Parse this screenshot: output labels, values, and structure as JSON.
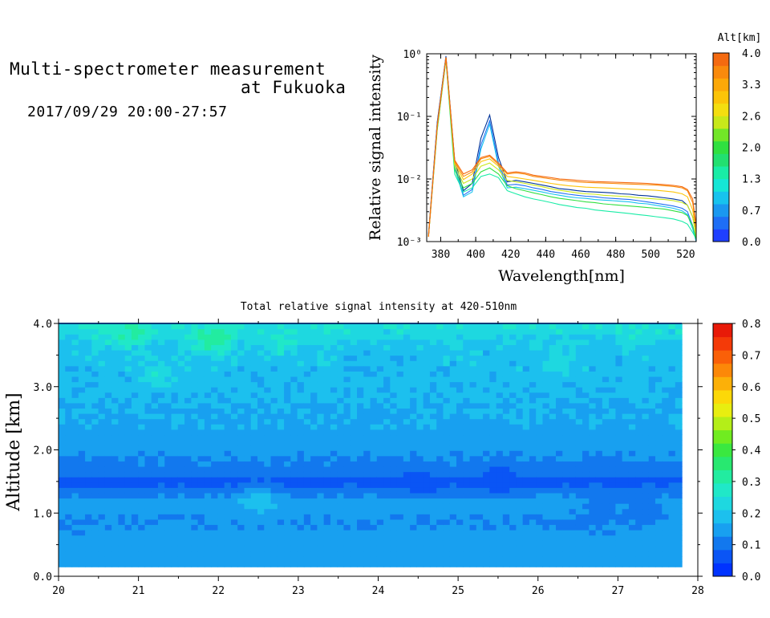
{
  "header": {
    "title_line1": "Multi-spectrometer measurement",
    "title_line2": "at Fukuoka",
    "subtitle": "2017/09/29 20:00-27:57"
  },
  "chart_data": [
    {
      "type": "line",
      "name": "spectra",
      "xlabel": "Wavelength[nm]",
      "ylabel": "Relative signal intensity",
      "xlim": [
        372,
        526
      ],
      "ylim": [
        0.001,
        1
      ],
      "yscale": "log",
      "xticks": [
        "380",
        "400",
        "420",
        "440",
        "460",
        "480",
        "500",
        "520"
      ],
      "yticks": [
        "10⁻³",
        "10⁻²",
        "10⁻¹",
        "10⁰"
      ],
      "x": [
        373,
        378,
        383,
        388,
        393,
        398,
        403,
        408,
        413,
        418,
        423,
        428,
        433,
        438,
        443,
        448,
        453,
        458,
        463,
        468,
        473,
        478,
        483,
        488,
        493,
        498,
        503,
        508,
        513,
        518,
        521,
        524,
        526
      ],
      "colorbar": {
        "title": "Alt[km]",
        "ticks": [
          "0.0",
          "0.7",
          "1.3",
          "2.0",
          "2.6",
          "3.3",
          "4.0"
        ],
        "colors": [
          "#1f3fff",
          "#1e6ef5",
          "#1a98f0",
          "#17c3ee",
          "#15e6d6",
          "#19eca6",
          "#22e070",
          "#30e040",
          "#72e628",
          "#c8e81a",
          "#f4de10",
          "#fcc408",
          "#fca808",
          "#f98a0c",
          "#f46a10"
        ]
      },
      "series": [
        {
          "color": "#003399",
          "values": [
            0.0013,
            0.08,
            0.92,
            0.02,
            0.0065,
            0.0085,
            0.045,
            0.105,
            0.022,
            0.009,
            0.0095,
            0.009,
            0.0085,
            0.008,
            0.0075,
            0.007,
            0.0068,
            0.0065,
            0.0063,
            0.0062,
            0.0061,
            0.006,
            0.0058,
            0.0057,
            0.0055,
            0.0054,
            0.0052,
            0.005,
            0.0048,
            0.0045,
            0.0038,
            0.0025,
            0.0013
          ]
        },
        {
          "color": "#1e6ef5",
          "values": [
            0.0012,
            0.075,
            0.9,
            0.017,
            0.0055,
            0.0068,
            0.035,
            0.085,
            0.018,
            0.008,
            0.0082,
            0.0078,
            0.0072,
            0.0068,
            0.0063,
            0.006,
            0.0057,
            0.0055,
            0.0053,
            0.0052,
            0.005,
            0.0049,
            0.0048,
            0.0047,
            0.0045,
            0.0043,
            0.0041,
            0.0039,
            0.0037,
            0.0034,
            0.003,
            0.0018,
            0.001
          ]
        },
        {
          "color": "#17c3ee",
          "values": [
            0.0012,
            0.07,
            0.85,
            0.015,
            0.0052,
            0.0062,
            0.03,
            0.075,
            0.016,
            0.0072,
            0.0074,
            0.007,
            0.0066,
            0.0062,
            0.0058,
            0.0055,
            0.0052,
            0.005,
            0.0049,
            0.0047,
            0.0046,
            0.0045,
            0.0044,
            0.0043,
            0.0041,
            0.004,
            0.0038,
            0.0036,
            0.0034,
            0.0031,
            0.0027,
            0.0016,
            0.001
          ]
        },
        {
          "color": "#19eca6",
          "values": [
            0.0012,
            0.06,
            0.8,
            0.012,
            0.0062,
            0.0072,
            0.011,
            0.012,
            0.0105,
            0.0065,
            0.0058,
            0.0052,
            0.0048,
            0.0045,
            0.0042,
            0.0039,
            0.0037,
            0.0035,
            0.0034,
            0.0032,
            0.0031,
            0.003,
            0.0029,
            0.0028,
            0.0027,
            0.0026,
            0.0025,
            0.0024,
            0.0023,
            0.0021,
            0.0019,
            0.0014,
            0.0011
          ]
        },
        {
          "color": "#30e040",
          "values": [
            0.0012,
            0.062,
            0.82,
            0.014,
            0.0072,
            0.0085,
            0.013,
            0.015,
            0.012,
            0.0078,
            0.007,
            0.0065,
            0.006,
            0.0056,
            0.0052,
            0.0049,
            0.0047,
            0.0045,
            0.0043,
            0.0042,
            0.004,
            0.0039,
            0.0038,
            0.0037,
            0.0036,
            0.0035,
            0.0034,
            0.0033,
            0.0031,
            0.0029,
            0.0026,
            0.0018,
            0.0011
          ]
        },
        {
          "color": "#c8e81a",
          "values": [
            0.0012,
            0.065,
            0.84,
            0.016,
            0.0085,
            0.01,
            0.016,
            0.018,
            0.014,
            0.0095,
            0.009,
            0.0085,
            0.008,
            0.0075,
            0.007,
            0.0066,
            0.0063,
            0.006,
            0.0058,
            0.0057,
            0.0055,
            0.0054,
            0.0053,
            0.0052,
            0.005,
            0.0049,
            0.0048,
            0.0047,
            0.0045,
            0.0042,
            0.0038,
            0.0025,
            0.0012
          ]
        },
        {
          "color": "#fcc408",
          "values": [
            0.0012,
            0.068,
            0.86,
            0.018,
            0.0098,
            0.012,
            0.019,
            0.021,
            0.016,
            0.011,
            0.0105,
            0.01,
            0.0095,
            0.009,
            0.0085,
            0.0081,
            0.0078,
            0.0076,
            0.0074,
            0.0073,
            0.0072,
            0.0071,
            0.007,
            0.0069,
            0.0068,
            0.0067,
            0.0066,
            0.0064,
            0.0062,
            0.0058,
            0.0052,
            0.0032,
            0.0014
          ]
        },
        {
          "color": "#f98a0c",
          "values": [
            0.0012,
            0.07,
            0.87,
            0.019,
            0.011,
            0.013,
            0.021,
            0.023,
            0.017,
            0.012,
            0.0125,
            0.012,
            0.011,
            0.0105,
            0.01,
            0.0096,
            0.0093,
            0.009,
            0.0088,
            0.0087,
            0.0086,
            0.0085,
            0.0084,
            0.0083,
            0.0082,
            0.0081,
            0.008,
            0.0078,
            0.0076,
            0.0072,
            0.0065,
            0.0042,
            0.0016
          ]
        },
        {
          "color": "#f46a10",
          "values": [
            0.0012,
            0.072,
            0.88,
            0.02,
            0.012,
            0.014,
            0.022,
            0.024,
            0.018,
            0.0125,
            0.013,
            0.0125,
            0.0115,
            0.011,
            0.0105,
            0.01,
            0.0098,
            0.0095,
            0.0093,
            0.0091,
            0.009,
            0.0089,
            0.0088,
            0.0087,
            0.0086,
            0.0085,
            0.0083,
            0.0081,
            0.0079,
            0.0075,
            0.0068,
            0.0048,
            0.0018
          ]
        }
      ]
    },
    {
      "type": "heatmap",
      "name": "total-intensity",
      "title": "Total relative signal intensity at 420-510nm",
      "xlabel": "",
      "ylabel": "Altitude [km]",
      "xlim": [
        20,
        28
      ],
      "ylim": [
        0,
        4
      ],
      "xticks": [
        "20",
        "21",
        "22",
        "23",
        "24",
        "25",
        "26",
        "27",
        "28"
      ],
      "yticks": [
        "0.0",
        "1.0",
        "2.0",
        "3.0",
        "4.0"
      ],
      "data_x_range": [
        20,
        27.8
      ],
      "data_y_range": [
        0.15,
        4.0
      ],
      "colorbar": {
        "ticks": [
          "0.0",
          "0.1",
          "0.2",
          "0.3",
          "0.4",
          "0.5",
          "0.6",
          "0.7",
          "0.8"
        ],
        "colors": [
          "#0033ff",
          "#0a55f5",
          "#1278ee",
          "#18a0f0",
          "#1cc0ee",
          "#1ed8e0",
          "#20e8c8",
          "#22eca0",
          "#28e870",
          "#3ae840",
          "#70ec20",
          "#b4ee18",
          "#e8ee10",
          "#fcd808",
          "#fcb008",
          "#fc8808",
          "#fa6008",
          "#f43a08",
          "#e81a08"
        ]
      },
      "profile": [
        {
          "alt": 4.0,
          "value": 0.25
        },
        {
          "alt": 3.6,
          "value": 0.19
        },
        {
          "alt": 3.2,
          "value": 0.185
        },
        {
          "alt": 2.8,
          "value": 0.175
        },
        {
          "alt": 2.4,
          "value": 0.155
        },
        {
          "alt": 2.0,
          "value": 0.135
        },
        {
          "alt": 1.7,
          "value": 0.115
        },
        {
          "alt": 1.5,
          "value": 0.065
        },
        {
          "alt": 1.2,
          "value": 0.145
        },
        {
          "alt": 0.9,
          "value": 0.125
        },
        {
          "alt": 0.5,
          "value": 0.14
        },
        {
          "alt": 0.15,
          "value": 0.155
        }
      ],
      "hotspots": [
        {
          "t": 20.6,
          "alt": 3.9,
          "value": 0.27
        },
        {
          "t": 20.9,
          "alt": 3.85,
          "value": 0.3
        },
        {
          "t": 21.8,
          "alt": 3.8,
          "value": 0.28
        },
        {
          "t": 22.0,
          "alt": 3.75,
          "value": 0.31
        },
        {
          "t": 22.8,
          "alt": 3.7,
          "value": 0.27
        },
        {
          "t": 21.2,
          "alt": 3.2,
          "value": 0.24
        },
        {
          "t": 23.5,
          "alt": 3.85,
          "value": 0.24
        },
        {
          "t": 25.0,
          "alt": 3.8,
          "value": 0.23
        },
        {
          "t": 26.3,
          "alt": 3.4,
          "value": 0.24
        },
        {
          "t": 27.2,
          "alt": 3.85,
          "value": 0.24
        },
        {
          "t": 22.5,
          "alt": 1.2,
          "value": 0.2
        },
        {
          "t": 26.8,
          "alt": 1.15,
          "value": 0.11
        },
        {
          "t": 27.3,
          "alt": 1.1,
          "value": 0.1
        },
        {
          "t": 25.5,
          "alt": 1.55,
          "value": 0.055
        },
        {
          "t": 24.5,
          "alt": 1.5,
          "value": 0.055
        }
      ]
    }
  ]
}
